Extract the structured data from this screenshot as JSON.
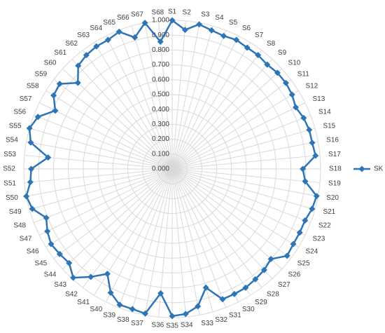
{
  "chart_data": {
    "type": "radar",
    "categories": [
      "S1",
      "S2",
      "S3",
      "S4",
      "S5",
      "S6",
      "S7",
      "S8",
      "S9",
      "S10",
      "S11",
      "S12",
      "S13",
      "S14",
      "S15",
      "S16",
      "S17",
      "S18",
      "S19",
      "S20",
      "S21",
      "S22",
      "S23",
      "S24",
      "S25",
      "S26",
      "S27",
      "S28",
      "S29",
      "S30",
      "S31",
      "S32",
      "S33",
      "S34",
      "S35",
      "S36",
      "S37",
      "S38",
      "S39",
      "S40",
      "S41",
      "S42",
      "S43",
      "S44",
      "S45",
      "S46",
      "S47",
      "S48",
      "S49",
      "S50",
      "S51",
      "S52",
      "S53",
      "S54",
      "S55",
      "S56",
      "S57",
      "S58",
      "S59",
      "S60",
      "S61",
      "S62",
      "S63",
      "S64",
      "S65",
      "S66",
      "S67",
      "S68"
    ],
    "series": [
      {
        "name": "SK",
        "color": "#2e75b6",
        "values": [
          1.0,
          0.94,
          0.99,
          0.97,
          0.96,
          0.97,
          0.96,
          0.96,
          0.95,
          0.96,
          0.96,
          0.95,
          0.93,
          0.95,
          0.96,
          0.96,
          0.97,
          0.88,
          0.9,
          0.99,
          0.98,
          0.96,
          0.96,
          0.96,
          0.97,
          0.9,
          0.92,
          0.93,
          0.94,
          0.94,
          0.94,
          0.83,
          0.94,
          0.98,
          0.99,
          0.84,
          0.99,
          0.98,
          0.98,
          0.93,
          0.83,
          0.91,
          0.99,
          0.94,
          0.95,
          0.96,
          0.94,
          0.91,
          0.98,
          1.0,
          0.96,
          0.95,
          0.84,
          0.97,
          1.0,
          0.97,
          0.88,
          0.94,
          0.95,
          0.86,
          0.94,
          0.96,
          0.97,
          0.97,
          0.99,
          0.92,
          1.0,
          0.86
        ]
      }
    ],
    "ylim": [
      0,
      1
    ],
    "yticks": [
      {
        "value": 0,
        "label": "0.000"
      },
      {
        "value": 0.1,
        "label": "0.100"
      },
      {
        "value": 0.2,
        "label": "0.200"
      },
      {
        "value": 0.3,
        "label": "0.300"
      },
      {
        "value": 0.4,
        "label": "0.400"
      },
      {
        "value": 0.5,
        "label": "0.500"
      },
      {
        "value": 0.6,
        "label": "0.600"
      },
      {
        "value": 0.7,
        "label": "0.700"
      },
      {
        "value": 0.8,
        "label": "0.800"
      },
      {
        "value": 0.9,
        "label": "0.900"
      },
      {
        "value": 1,
        "label": "1.000"
      }
    ],
    "grid": true,
    "legend": "right"
  }
}
